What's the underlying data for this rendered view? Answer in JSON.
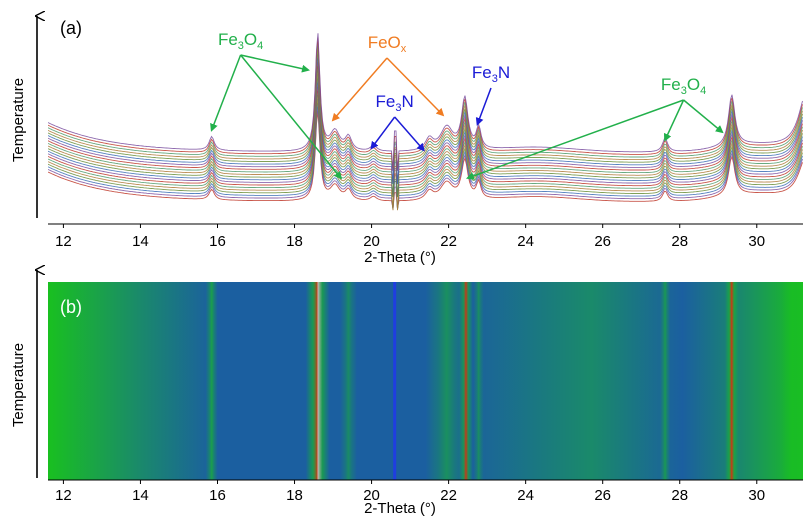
{
  "chart_data": [
    {
      "type": "line",
      "panel_label": "(a)",
      "xlabel": "2-Theta (°)",
      "ylabel": "Temperature",
      "xlim": [
        11.6,
        31.2
      ],
      "x_ticks": [
        "12",
        "14",
        "16",
        "18",
        "20",
        "22",
        "24",
        "26",
        "28",
        "30"
      ],
      "stack_count": 20,
      "series_colors": [
        "#c0392b",
        "#7a4fa0",
        "#3b6fb6",
        "#6a8f3a",
        "#b07a3a",
        "#4f9a6a"
      ],
      "peaks": [
        {
          "x": 15.85,
          "height": 14,
          "width": 0.08,
          "phase": "Fe3O4"
        },
        {
          "x": 18.6,
          "height": 120,
          "width": 0.07,
          "phase": "Fe3O4"
        },
        {
          "x": 19.05,
          "height": 20,
          "width": 0.15,
          "phase": "FeOx"
        },
        {
          "x": 19.4,
          "height": 14,
          "width": 0.1,
          "phase": "Fe3O4"
        },
        {
          "x": 20.05,
          "height": 6,
          "width": 0.1,
          "phase": "Fe3N"
        },
        {
          "x": 21.5,
          "height": 12,
          "width": 0.12,
          "phase": "Fe3N"
        },
        {
          "x": 21.95,
          "height": 24,
          "width": 0.2,
          "phase": "FeOx"
        },
        {
          "x": 22.42,
          "height": 52,
          "width": 0.1,
          "phase": "Fe3O4"
        },
        {
          "x": 22.78,
          "height": 22,
          "width": 0.07,
          "phase": "Fe3N"
        },
        {
          "x": 27.62,
          "height": 14,
          "width": 0.08,
          "phase": "Fe3O4"
        },
        {
          "x": 29.35,
          "height": 52,
          "width": 0.1,
          "phase": "Fe3O4"
        },
        {
          "x": 31.3,
          "height": 60,
          "width": 0.25,
          "phase": "Fe3O4"
        }
      ],
      "artifact_x": 20.6,
      "annotations": [
        {
          "base": "Fe",
          "sub1": "3",
          "mid": "O",
          "sub2": "4",
          "color": "#22b04b",
          "anchor": [
            16.6,
            45
          ],
          "targets": [
            [
              15.85,
              130
            ],
            [
              18.35,
              70
            ],
            [
              19.2,
              178
            ]
          ]
        },
        {
          "base": "FeO",
          "sub1": "x",
          "mid": "",
          "sub2": "",
          "color": "#f07c22",
          "anchor": [
            20.4,
            48
          ],
          "targets": [
            [
              19.0,
              120
            ],
            [
              21.85,
              115
            ]
          ]
        },
        {
          "base": "Fe",
          "sub1": "3",
          "mid": "N",
          "sub2": "",
          "color": "#1b1bd6",
          "anchor": [
            23.1,
            78
          ],
          "targets": [
            [
              22.75,
              124
            ]
          ]
        },
        {
          "base": "Fe",
          "sub1": "3",
          "mid": "N",
          "sub2": "",
          "color": "#1b1bd6",
          "anchor": [
            20.6,
            107
          ],
          "targets": [
            [
              20.0,
              148
            ],
            [
              21.35,
              150
            ]
          ]
        },
        {
          "base": "Fe",
          "sub1": "3",
          "mid": "O",
          "sub2": "4",
          "color": "#22b04b",
          "anchor": [
            28.1,
            90
          ],
          "targets": [
            [
              27.62,
              140
            ],
            [
              29.1,
              132
            ],
            [
              22.5,
              178
            ]
          ]
        }
      ]
    },
    {
      "type": "heatmap",
      "panel_label": "(b)",
      "xlabel": "2-Theta (°)",
      "ylabel": "Temperature",
      "xlim": [
        11.6,
        31.2
      ],
      "x_ticks": [
        "12",
        "14",
        "16",
        "18",
        "20",
        "22",
        "24",
        "26",
        "28",
        "30"
      ],
      "colormap": [
        "#1b5fa0",
        "#1a8a6a",
        "#19c020",
        "#d83010",
        "#ffd0c0"
      ],
      "bands": [
        {
          "x": 15.85,
          "intensity": 0.55,
          "width": 0.07
        },
        {
          "x": 18.6,
          "intensity": 1.0,
          "width": 0.14
        },
        {
          "x": 19.4,
          "intensity": 0.35,
          "width": 0.1
        },
        {
          "x": 21.95,
          "intensity": 0.4,
          "width": 0.25
        },
        {
          "x": 22.45,
          "intensity": 0.82,
          "width": 0.08
        },
        {
          "x": 22.78,
          "intensity": 0.35,
          "width": 0.06
        },
        {
          "x": 27.62,
          "intensity": 0.45,
          "width": 0.06
        },
        {
          "x": 29.35,
          "intensity": 0.85,
          "width": 0.08
        },
        {
          "x": 31.3,
          "intensity": 0.6,
          "width": 0.3
        }
      ],
      "artifact_x": 20.6,
      "artifact_color": "#1f3ee0"
    }
  ]
}
